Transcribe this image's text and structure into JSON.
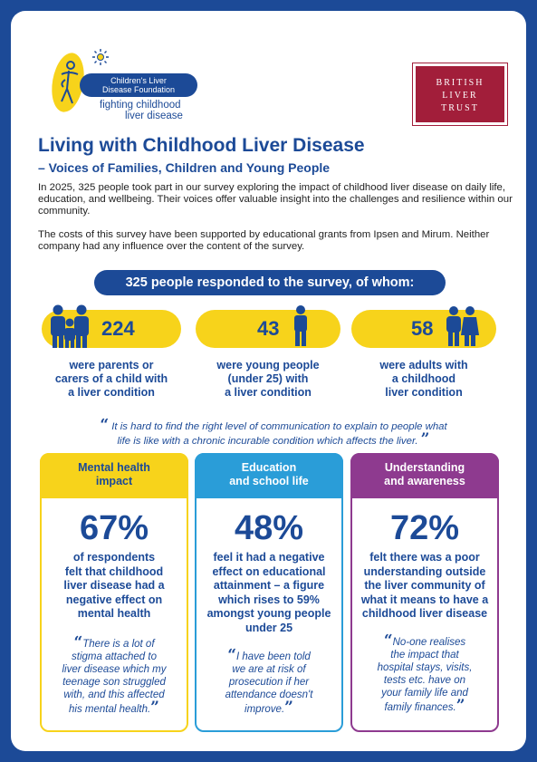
{
  "header": {
    "org_logo": {
      "name_line1": "Children's Liver",
      "name_line2": "Disease Foundation",
      "tagline_line1": "fighting childhood",
      "tagline_line2": "liver disease",
      "colors": {
        "yellow": "#f7d31b",
        "blue": "#1c4a97"
      }
    },
    "partner_logo": {
      "line1": "BRITISH",
      "line2": "LIVER",
      "line3": "TRUST",
      "color": "#a21e3a"
    }
  },
  "title": "Living with Childhood Liver Disease",
  "subtitle": "– Voices of Families, Children and Young People",
  "intro_p1": "In 2025, 325 people took part in our survey exploring the impact of childhood liver disease on daily life, education, and wellbeing. Their voices offer valuable insight into the challenges and resilience within our community.",
  "intro_p2": "The costs of this survey have been supported by educational grants from Ipsen and Mirum. Neither company had any influence over the content of the survey.",
  "banner": "325 people responded to the survey, of whom:",
  "respondents": [
    {
      "number": "224",
      "icon": "family-icon",
      "caption_l1": "were parents or",
      "caption_l2": "carers of a child with",
      "caption_l3": "a liver condition"
    },
    {
      "number": "43",
      "icon": "person-icon",
      "caption_l1": "were young people",
      "caption_l2": "(under 25) with",
      "caption_l3": "a liver condition"
    },
    {
      "number": "58",
      "icon": "adults-icon",
      "caption_l1": "were adults with",
      "caption_l2": "a childhood",
      "caption_l3": "liver condition"
    }
  ],
  "main_quote_l1": "It is hard to find the right level of communication to explain to people what",
  "main_quote_l2": "life is like with a chronic incurable condition which affects the liver.",
  "cards": [
    {
      "head_l1": "Mental health",
      "head_l2": "impact",
      "percent": "67%",
      "text": [
        "of respondents",
        "felt that childhood",
        "liver disease had a",
        "negative effect on",
        "mental health"
      ],
      "quote": [
        "There is a lot of",
        "stigma attached to",
        "liver disease which my",
        "teenage son struggled",
        "with, and this affected",
        "his mental health."
      ],
      "color": "#f7d31b",
      "head_text_color": "#1c4a97"
    },
    {
      "head_l1": "Education",
      "head_l2": "and school life",
      "percent": "48%",
      "text": [
        "feel it had a negative",
        "effect on educational",
        "attainment – a figure",
        "which rises to 59%",
        "amongst young people",
        "under 25"
      ],
      "quote": [
        "I have been told",
        "we are at risk of",
        "prosecution if her",
        "attendance doesn't",
        "improve."
      ],
      "color": "#2a9dd8",
      "head_text_color": "#ffffff"
    },
    {
      "head_l1": "Understanding",
      "head_l2": "and awareness",
      "percent": "72%",
      "text": [
        "felt there was a poor",
        "understanding outside",
        "the liver community of",
        "what it means to have a",
        "childhood liver disease"
      ],
      "quote": [
        "No-one realises",
        "the impact that",
        "hospital stays, visits,",
        "tests etc. have on",
        "your family life and",
        "family finances."
      ],
      "color": "#8e3a8f",
      "head_text_color": "#ffffff"
    }
  ]
}
